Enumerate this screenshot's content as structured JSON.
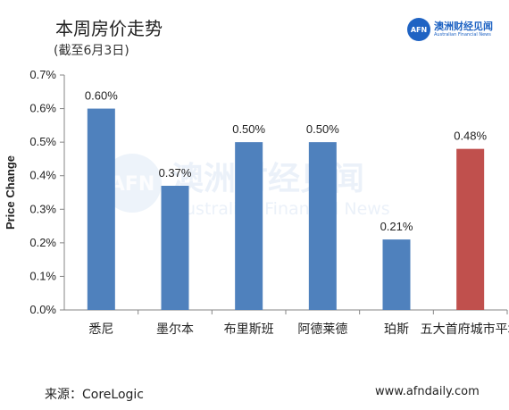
{
  "header": {
    "title": "本周房价走势",
    "subtitle": "(截至6月3日)"
  },
  "brand": {
    "logo_text": "AFN",
    "name_cn": "澳洲财经见闻",
    "name_en": "Australian Financial News"
  },
  "watermark": {
    "cn": "澳洲财经见闻",
    "en": "Australian Financial News"
  },
  "chart_data": {
    "type": "bar",
    "title": "",
    "xlabel": "",
    "ylabel": "Price Change",
    "categories": [
      "悉尼",
      "墨尔本",
      "布里斯班",
      "阿德莱德",
      "珀斯",
      "五大首府城市平均"
    ],
    "values": [
      0.6,
      0.37,
      0.5,
      0.5,
      0.21,
      0.48
    ],
    "value_labels": [
      "0.60%",
      "0.37%",
      "0.50%",
      "0.50%",
      "0.21%",
      "0.48%"
    ],
    "ylim": [
      0,
      0.7
    ],
    "yticks": [
      "0.0%",
      "0.1%",
      "0.2%",
      "0.3%",
      "0.4%",
      "0.5%",
      "0.6%",
      "0.7%"
    ],
    "colors": [
      "#4f81bd",
      "#4f81bd",
      "#4f81bd",
      "#4f81bd",
      "#4f81bd",
      "#c0504d"
    ],
    "grid": false,
    "legend": "none"
  },
  "footer": {
    "source": "来源：CoreLogic",
    "website": "www.afndaily.com"
  }
}
